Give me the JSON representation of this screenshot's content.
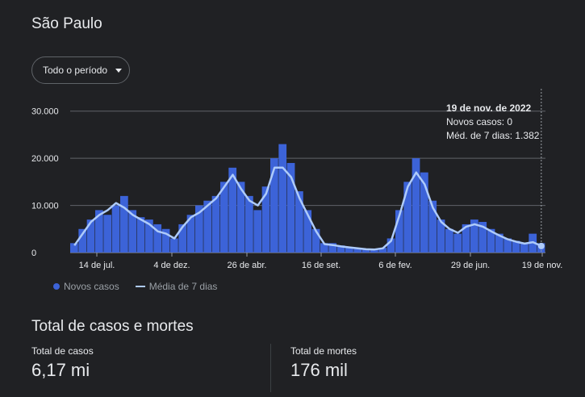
{
  "title": "São Paulo",
  "period_select": {
    "value": "Todo o período"
  },
  "legend": {
    "new_cases": "Novos casos",
    "avg7": "Média de 7 dias"
  },
  "tooltip": {
    "date": "19 de nov. de 2022",
    "new_cases": "Novos casos: 0",
    "avg7": "Méd. de 7 dias: 1.382"
  },
  "section": {
    "title": "Total de casos e mortes",
    "cases_label": "Total de casos",
    "cases_value": "6,17 mi",
    "deaths_label": "Total de mortes",
    "deaths_value": "176 mil"
  },
  "colors": {
    "bars": "#3c63d8",
    "line": "#aecbfa",
    "grid": "#5f6368"
  },
  "chart_data": {
    "type": "bar",
    "y_ticks": [
      "30.000",
      "20.000",
      "10.000",
      "0"
    ],
    "ylim": [
      0,
      32000
    ],
    "x_tick_labels": [
      "14 de jul.",
      "4 de dez.",
      "26 de abr.",
      "16 de set.",
      "6 de fev.",
      "29 de jun.",
      "19 de nov."
    ],
    "series": [
      {
        "name": "Novos casos",
        "values": [
          2000,
          5000,
          7000,
          9000,
          8000,
          10000,
          12000,
          9000,
          7500,
          7000,
          6000,
          5000,
          3000,
          6000,
          8000,
          10000,
          11000,
          12000,
          15000,
          18000,
          15000,
          12000,
          9000,
          14000,
          20000,
          23000,
          19000,
          13000,
          9000,
          5000,
          2000,
          2000,
          1500,
          1200,
          1000,
          800,
          700,
          1000,
          3000,
          9000,
          15000,
          20000,
          17000,
          11000,
          7000,
          5000,
          4000,
          6000,
          7000,
          6500,
          5000,
          4000,
          3000,
          2500,
          2000,
          4000,
          2000
        ]
      },
      {
        "name": "Média de 7 dias",
        "values": [
          1500,
          4000,
          6500,
          8000,
          9000,
          10500,
          9500,
          8000,
          7000,
          6000,
          4500,
          4000,
          3000,
          5500,
          7500,
          8500,
          10000,
          11500,
          14000,
          16500,
          13500,
          11000,
          10000,
          12500,
          18000,
          18000,
          16000,
          11500,
          8000,
          4500,
          1800,
          1600,
          1300,
          1100,
          900,
          700,
          650,
          900,
          2500,
          8000,
          14000,
          17000,
          14500,
          9500,
          6500,
          5000,
          4200,
          5500,
          6000,
          5500,
          4500,
          3600,
          2800,
          2300,
          1900,
          2200,
          1382
        ]
      }
    ]
  }
}
